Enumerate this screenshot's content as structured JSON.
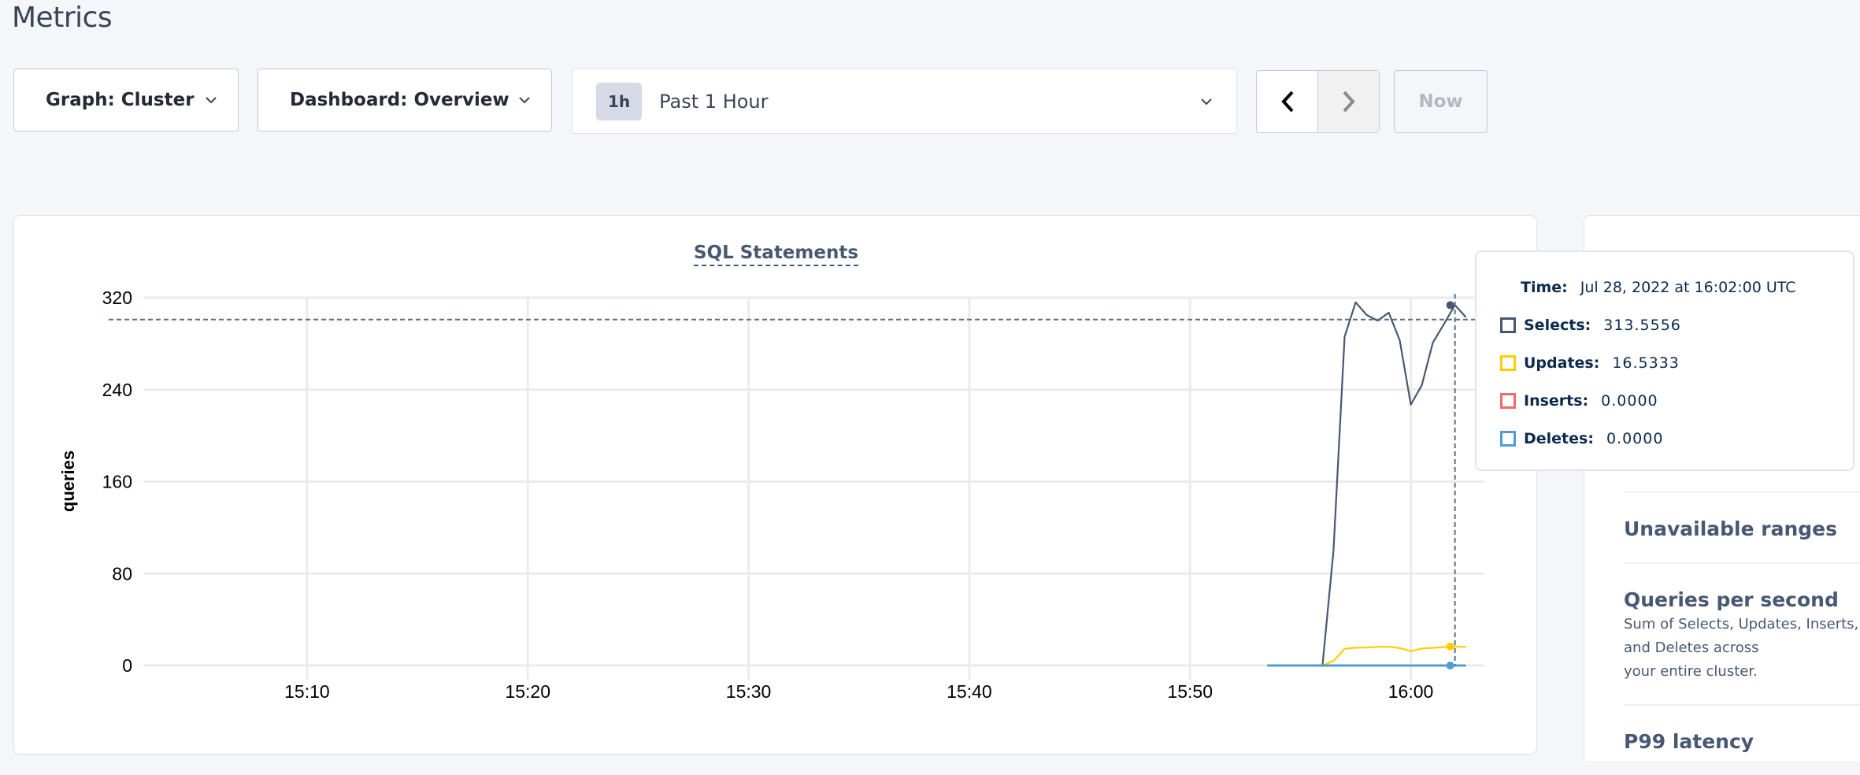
{
  "page": {
    "title": "Metrics"
  },
  "toolbar": {
    "graph_label": "Graph: Cluster",
    "dashboard_label": "Dashboard: Overview",
    "time_pill": "1h",
    "time_label": "Past 1 Hour",
    "now_label": "Now"
  },
  "chart_data": {
    "type": "line",
    "title": "SQL Statements",
    "xlabel": "",
    "ylabel": "queries",
    "xlim": [
      "15:02:35",
      "16:03:20"
    ],
    "ylim": [
      0,
      340
    ],
    "x_ticks": [
      "15:10",
      "15:20",
      "15:30",
      "15:40",
      "15:50",
      "16:00"
    ],
    "y_ticks": [
      0,
      80,
      160,
      240,
      320
    ],
    "grid": true,
    "series": [
      {
        "name": "Selects",
        "color": "#475872",
        "x": [
          "15:56:00",
          "15:56:30",
          "15:57:00",
          "15:57:30",
          "15:58:00",
          "15:58:30",
          "15:59:00",
          "15:59:30",
          "16:00:00",
          "16:00:30",
          "16:01:00",
          "16:01:30",
          "16:02:00",
          "16:02:30"
        ],
        "values": [
          0,
          100,
          286,
          316,
          305,
          300,
          307,
          283,
          227,
          244,
          281,
          297,
          313.5556,
          303
        ]
      },
      {
        "name": "Updates",
        "color": "#ffcd02",
        "x": [
          "15:56:00",
          "15:56:30",
          "15:57:00",
          "15:57:30",
          "15:58:00",
          "15:58:30",
          "15:59:00",
          "15:59:30",
          "16:00:00",
          "16:00:30",
          "16:01:00",
          "16:01:30",
          "16:02:00",
          "16:02:30"
        ],
        "values": [
          0,
          4,
          14.5,
          15.5,
          15.6,
          16.3,
          16.3,
          15.2,
          12.5,
          14.8,
          15.4,
          16,
          16.5333,
          16.2
        ]
      },
      {
        "name": "Inserts",
        "color": "#f16969",
        "x": [
          "15:53:30",
          "16:02:30"
        ],
        "values": [
          0,
          0
        ]
      },
      {
        "name": "Deletes",
        "color": "#4e9fd1",
        "x": [
          "15:53:30",
          "16:02:30"
        ],
        "values": [
          0,
          0
        ]
      }
    ],
    "hover": {
      "x": "16:02:00",
      "crosshair_y": 301,
      "time_label": "Time:",
      "time_value": "Jul 28, 2022 at 16:02:00 UTC",
      "rows": [
        {
          "label": "Selects:",
          "value": "313.5556",
          "color": "#475872"
        },
        {
          "label": "Updates:",
          "value": "16.5333",
          "color": "#ffcd02"
        },
        {
          "label": "Inserts:",
          "value": "0.0000",
          "color": "#f16969"
        },
        {
          "label": "Deletes:",
          "value": "0.0000",
          "color": "#4e9fd1"
        }
      ]
    }
  },
  "side_panel": {
    "items": [
      {
        "title": "Unavailable ranges"
      },
      {
        "title": "Queries per second",
        "desc": [
          "Sum of Selects, Updates, Inserts, and Deletes across",
          "your entire cluster."
        ]
      },
      {
        "title": "P99 latency"
      }
    ]
  }
}
